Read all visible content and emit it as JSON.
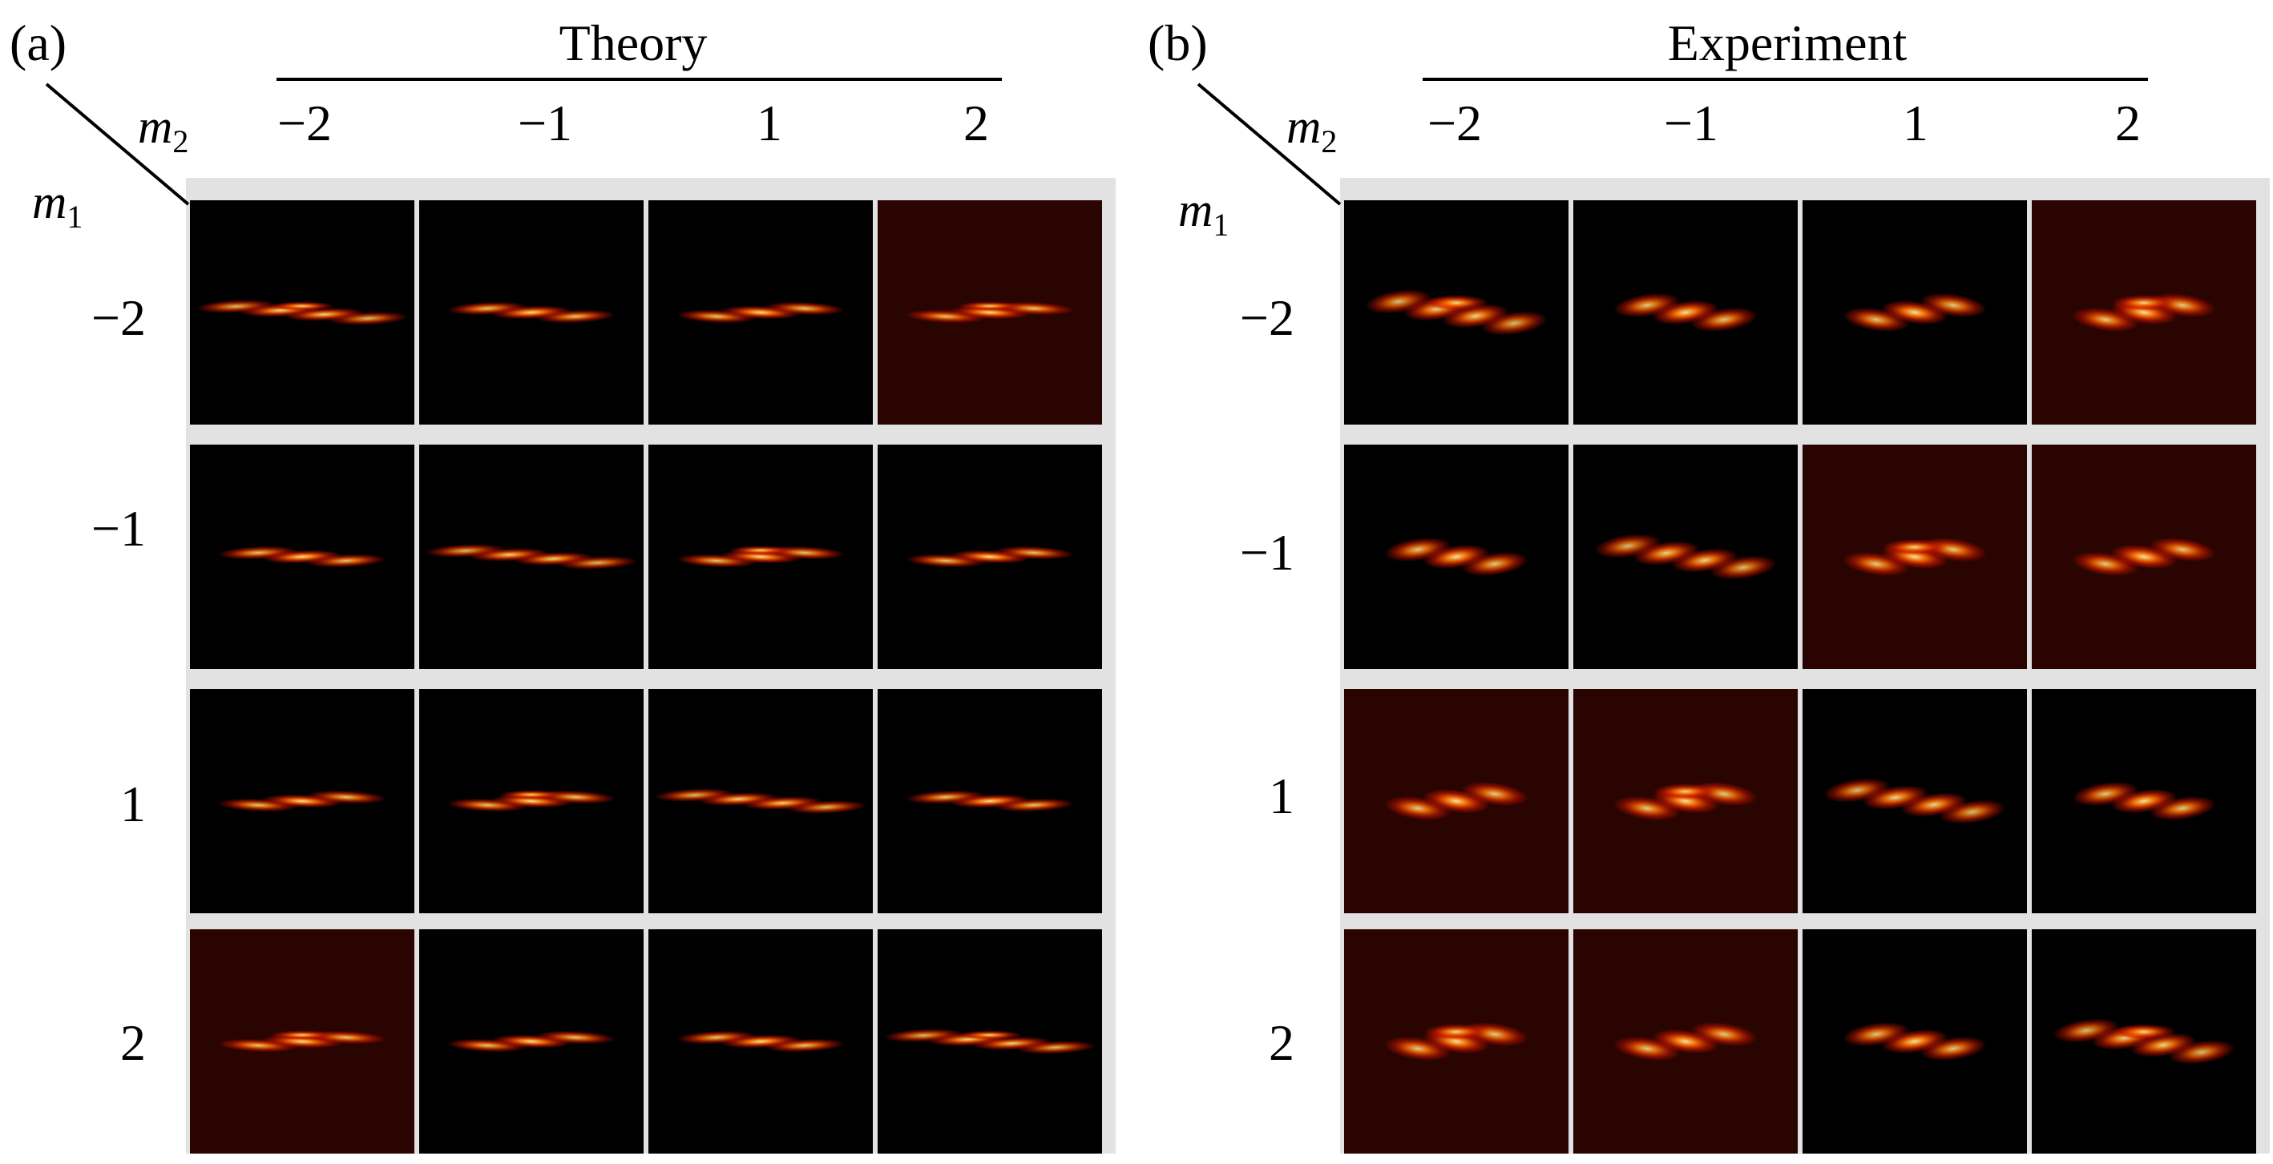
{
  "figure": {
    "panel_a": {
      "label": "(a)",
      "title": "Theory",
      "col_axis": "m",
      "col_axis_sub": "2",
      "row_axis": "m",
      "row_axis_sub": "1",
      "col_ticks": [
        "−2",
        "−1",
        "1",
        "2"
      ],
      "row_ticks": [
        "−2",
        "−1",
        "1",
        "2"
      ]
    },
    "panel_b": {
      "label": "(b)",
      "title": "Experiment",
      "col_axis": "m",
      "col_axis_sub": "2",
      "row_axis": "m",
      "row_axis_sub": "1",
      "col_ticks": [
        "−2",
        "−1",
        "1",
        "2"
      ],
      "row_ticks": [
        "−2",
        "−1",
        "1",
        "2"
      ]
    },
    "colors": {
      "background_dark": "#000000",
      "background_dim_red": "#2a0400",
      "hot_red": "#c81400",
      "hot_orange": "#ff6a00",
      "hot_yellow": "#fff2a0",
      "grid_line": "#e2e2e2"
    }
  }
}
